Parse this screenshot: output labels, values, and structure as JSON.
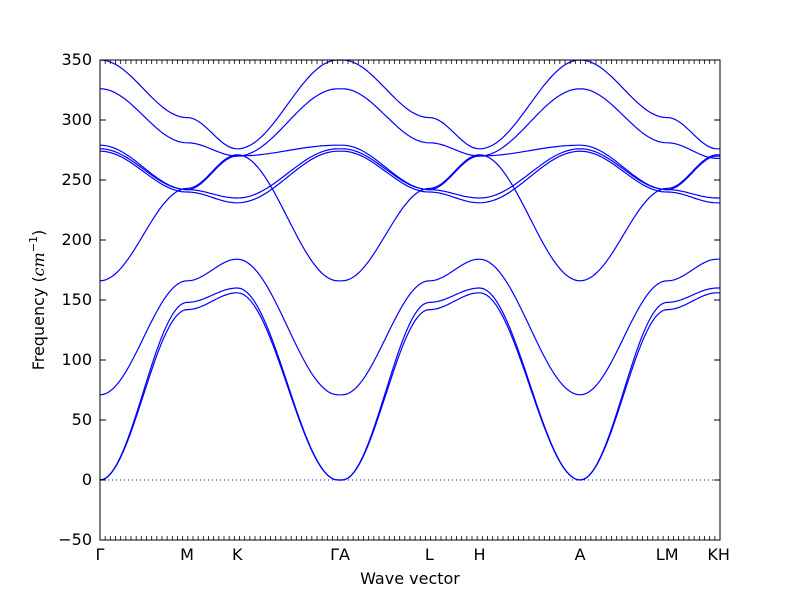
{
  "chart_data": {
    "type": "line",
    "title": "",
    "xlabel": "Wave vector",
    "ylabel_text": "Frequency (",
    "ylabel_unit_base": "cm",
    "ylabel_unit_exp": "−1",
    "ylabel_close": ")",
    "ylim": [
      -50,
      350
    ],
    "yticks": [
      -50,
      0,
      50,
      100,
      150,
      200,
      250,
      300,
      350
    ],
    "x_path_segments": [
      {
        "from": "Γ",
        "to": "M",
        "length": 1.0
      },
      {
        "from": "M",
        "to": "K",
        "length": 0.577
      },
      {
        "from": "K",
        "to": "Γ",
        "length": 1.155
      },
      {
        "from": "Γ",
        "to": "A",
        "length": 0.05
      },
      {
        "from": "A",
        "to": "L",
        "length": 1.0
      },
      {
        "from": "L",
        "to": "H",
        "length": 0.577
      },
      {
        "from": "H",
        "to": "A",
        "length": 1.155
      },
      {
        "from": "A",
        "to": "L",
        "length": 1.0
      },
      {
        "from": "M",
        "to": "K",
        "length": 0.577
      },
      {
        "from": "H",
        "to": "H",
        "length": 0.03
      }
    ],
    "high_symmetry_labels": [
      "Γ",
      "M",
      "K",
      "ΓA",
      "L",
      "H",
      "A",
      "LM",
      "KH"
    ],
    "zero_line": 0,
    "grid": false,
    "series": [
      {
        "values": [
          0,
          142,
          156,
          0,
          0,
          142,
          156,
          0,
          142,
          156,
          156
        ]
      },
      {
        "values": [
          0,
          148,
          160,
          0,
          0,
          148,
          160,
          0,
          148,
          160,
          160
        ]
      },
      {
        "values": [
          71,
          166,
          184,
          71,
          71,
          166,
          184,
          71,
          166,
          184,
          184
        ]
      },
      {
        "values": [
          166,
          243,
          271,
          166,
          166,
          243,
          271,
          166,
          243,
          271,
          271
        ]
      },
      {
        "values": [
          274,
          240,
          231,
          274,
          274,
          240,
          231,
          274,
          240,
          231,
          231
        ]
      },
      {
        "values": [
          276,
          242,
          235,
          276,
          276,
          242,
          235,
          276,
          242,
          235,
          235
        ]
      },
      {
        "values": [
          279,
          242,
          270,
          279,
          279,
          242,
          270,
          279,
          242,
          270,
          270
        ]
      },
      {
        "values": [
          326,
          281,
          270,
          326,
          326,
          281,
          270,
          326,
          281,
          268,
          268
        ]
      },
      {
        "values": [
          350,
          302,
          276,
          350,
          350,
          302,
          276,
          350,
          302,
          276,
          276
        ]
      }
    ]
  }
}
